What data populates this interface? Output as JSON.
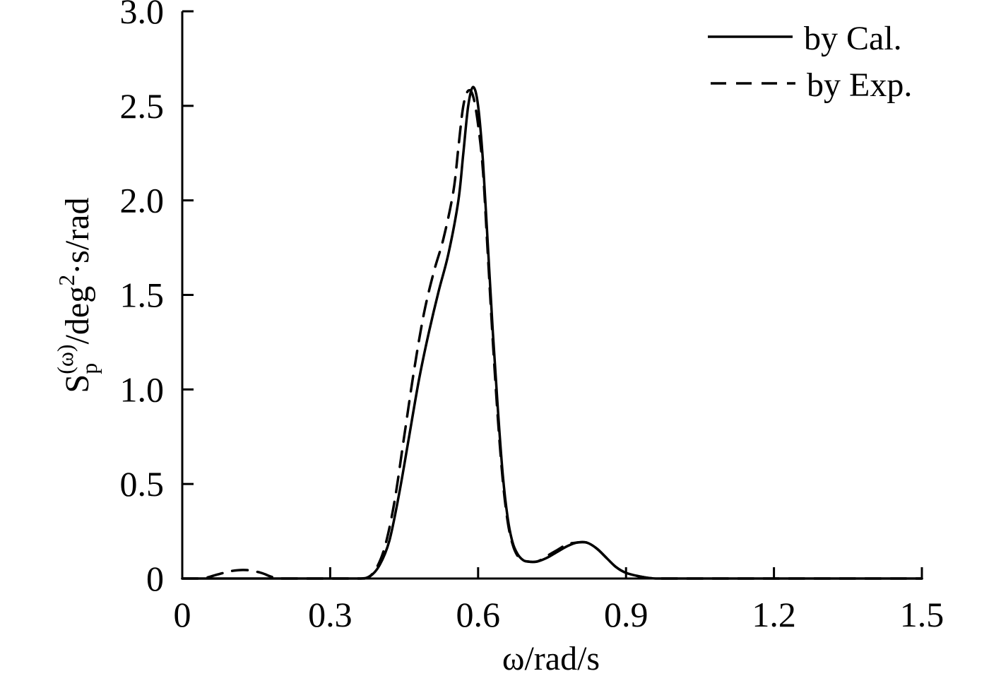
{
  "chart_data": {
    "type": "line",
    "xlabel": "ω/rad/s",
    "ylabel": {
      "base": "S",
      "sub": "p",
      "sup": "(ω)",
      "rest": "/deg",
      "rest_sup": "2",
      "tail": "·s/rad"
    },
    "xlim": [
      0,
      1.5
    ],
    "ylim": [
      0,
      3.0
    ],
    "x_ticks": [
      0,
      0.3,
      0.6,
      0.9,
      1.2,
      1.5
    ],
    "x_tick_labels": [
      "0",
      "0.3",
      "0.6",
      "0.9",
      "1.2",
      "1.5"
    ],
    "y_ticks": [
      0,
      0.5,
      1.0,
      1.5,
      2.0,
      2.5,
      3.0
    ],
    "y_tick_labels": [
      "0",
      "0.5",
      "1.0",
      "1.5",
      "2.0",
      "2.5",
      "3.0"
    ],
    "grid": false,
    "legend_position": "top-right",
    "series": [
      {
        "name": "by Cal.",
        "style": "solid",
        "color": "#000000",
        "x": [
          0,
          0.05,
          0.1,
          0.15,
          0.2,
          0.25,
          0.3,
          0.33,
          0.36,
          0.38,
          0.4,
          0.42,
          0.44,
          0.46,
          0.48,
          0.5,
          0.52,
          0.54,
          0.56,
          0.57,
          0.58,
          0.59,
          0.6,
          0.61,
          0.62,
          0.63,
          0.64,
          0.65,
          0.66,
          0.67,
          0.68,
          0.69,
          0.7,
          0.72,
          0.74,
          0.76,
          0.78,
          0.8,
          0.82,
          0.84,
          0.86,
          0.88,
          0.9,
          0.93,
          0.96,
          1.0,
          1.1,
          1.2,
          1.3,
          1.4,
          1.5
        ],
        "y": [
          0,
          0,
          0,
          0,
          0,
          0,
          0,
          0,
          0,
          0.01,
          0.07,
          0.2,
          0.45,
          0.75,
          1.05,
          1.3,
          1.52,
          1.72,
          2.0,
          2.25,
          2.5,
          2.6,
          2.5,
          2.2,
          1.75,
          1.3,
          0.9,
          0.55,
          0.32,
          0.19,
          0.13,
          0.1,
          0.09,
          0.09,
          0.11,
          0.14,
          0.17,
          0.19,
          0.19,
          0.16,
          0.11,
          0.06,
          0.03,
          0.01,
          0,
          0,
          0,
          0,
          0,
          0,
          0
        ]
      },
      {
        "name": "by Exp.",
        "style": "dashed",
        "color": "#000000",
        "x": [
          0,
          0.04,
          0.07,
          0.1,
          0.13,
          0.16,
          0.18,
          0.2,
          0.25,
          0.3,
          0.34,
          0.37,
          0.39,
          0.41,
          0.43,
          0.45,
          0.47,
          0.49,
          0.51,
          0.53,
          0.55,
          0.56,
          0.57,
          0.58,
          0.59,
          0.6,
          0.61,
          0.62,
          0.63,
          0.64,
          0.65,
          0.66,
          0.67,
          0.68,
          0.69,
          0.7,
          0.72,
          0.74,
          0.76,
          0.78,
          0.8,
          0.82,
          0.84,
          0.86,
          0.88,
          0.9,
          0.93,
          0.96,
          1.0,
          1.1,
          1.2,
          1.3,
          1.4,
          1.5
        ],
        "y": [
          0,
          0,
          0.02,
          0.04,
          0.045,
          0.03,
          0.01,
          0,
          0,
          0,
          0,
          0,
          0.04,
          0.16,
          0.4,
          0.75,
          1.1,
          1.4,
          1.62,
          1.8,
          2.05,
          2.28,
          2.5,
          2.58,
          2.55,
          2.4,
          2.15,
          1.7,
          1.25,
          0.85,
          0.52,
          0.3,
          0.18,
          0.12,
          0.1,
          0.09,
          0.09,
          0.12,
          0.15,
          0.18,
          0.19,
          0.19,
          0.16,
          0.11,
          0.06,
          0.03,
          0.01,
          0,
          0,
          0,
          0,
          0,
          0,
          0
        ]
      }
    ]
  }
}
